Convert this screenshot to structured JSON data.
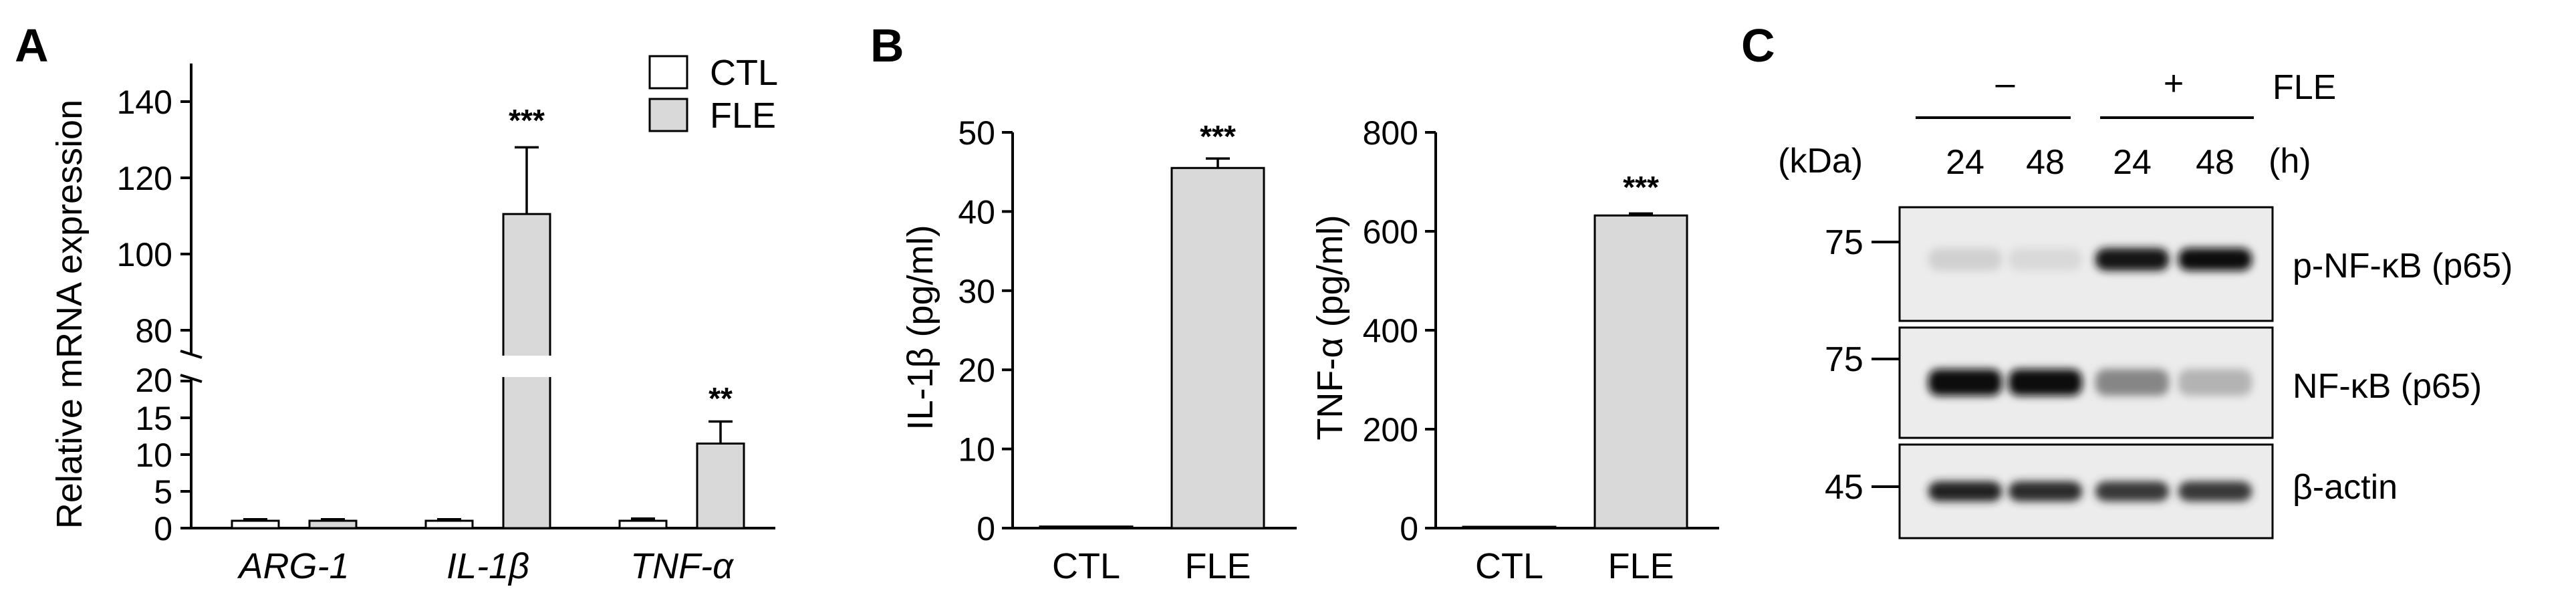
{
  "panels": {
    "A": "A",
    "B": "B",
    "C": "C"
  },
  "chart_data": [
    {
      "type": "bar",
      "panel": "A",
      "ylabel": "Relative mRNA expression",
      "categories": [
        "ARG-1",
        "IL-1β",
        "TNF-α"
      ],
      "series": [
        {
          "name": "CTL",
          "values": [
            1.0,
            1.0,
            1.0
          ],
          "errors": [
            0.2,
            0.2,
            0.3
          ],
          "color": "#ffffff"
        },
        {
          "name": "FLE",
          "values": [
            1.0,
            110.5,
            11.5
          ],
          "errors": [
            0.2,
            17.5,
            3.0
          ],
          "color": "#d9d9d9"
        }
      ],
      "significance": [
        "",
        "***",
        "**"
      ],
      "y_break": [
        20,
        75
      ],
      "ylim": [
        0,
        150
      ],
      "yticks_lower": [
        "0",
        "5",
        "10",
        "15",
        "20"
      ],
      "yticks_upper": [
        "80",
        "100",
        "120",
        "140"
      ],
      "legend_position": "top-right",
      "grid": false
    },
    {
      "type": "bar",
      "panel": "B-left",
      "ylabel": "IL-1β  (pg/ml)",
      "categories": [
        "CTL",
        "FLE"
      ],
      "values": [
        0.2,
        45.5
      ],
      "errors": [
        0.0,
        1.2
      ],
      "colors": [
        "#ffffff",
        "#d9d9d9"
      ],
      "significance": [
        "",
        "***"
      ],
      "ylim": [
        0,
        50
      ],
      "yticks": [
        "0",
        "10",
        "20",
        "30",
        "40",
        "50"
      ],
      "grid": false
    },
    {
      "type": "bar",
      "panel": "B-right",
      "ylabel": "TNF-α  (pg/ml)",
      "categories": [
        "CTL",
        "FLE"
      ],
      "values": [
        1,
        632
      ],
      "errors": [
        0,
        4
      ],
      "colors": [
        "#ffffff",
        "#d9d9d9"
      ],
      "significance": [
        "",
        "***"
      ],
      "ylim": [
        0,
        800
      ],
      "yticks": [
        "0",
        "200",
        "400",
        "600",
        "800"
      ],
      "grid": false
    }
  ],
  "western_blot": {
    "treatment_label": "FLE",
    "groups": [
      "–",
      "+"
    ],
    "time_unit": "(h)",
    "kda_label": "(kDa)",
    "times": [
      "24",
      "48",
      "24",
      "48"
    ],
    "rows": [
      {
        "marker": "75",
        "protein": "p-NF-κB (p65)",
        "intensities": [
          0.12,
          0.08,
          0.95,
          1.0
        ]
      },
      {
        "marker": "75",
        "protein": "NF-κB (p65)",
        "intensities": [
          1.0,
          1.0,
          0.45,
          0.25
        ]
      },
      {
        "marker": "45",
        "protein": "β-actin",
        "intensities": [
          0.9,
          0.85,
          0.8,
          0.8
        ]
      }
    ]
  }
}
